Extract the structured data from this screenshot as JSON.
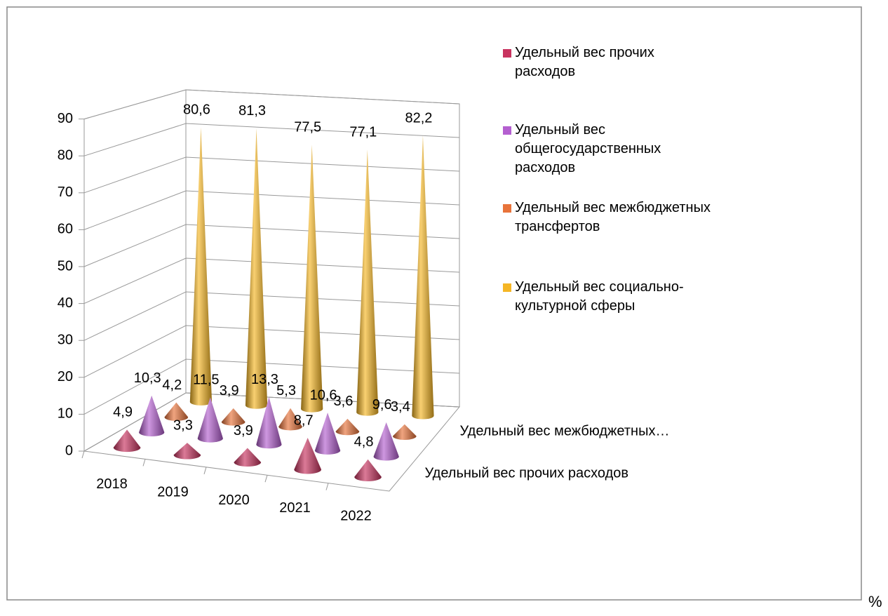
{
  "chart_data": {
    "type": "cone3d",
    "categories": [
      "2018",
      "2019",
      "2020",
      "2021",
      "2022"
    ],
    "depth_labels": [
      "Удельный вес прочих расходов",
      "Удельный вес межбюджетных…"
    ],
    "ylim": [
      0,
      90
    ],
    "yticks": [
      0,
      10,
      20,
      30,
      40,
      50,
      60,
      70,
      80,
      90
    ],
    "grid": true,
    "legend": "right",
    "unit": "%",
    "series": [
      {
        "name": "Удельный вес прочих расходов",
        "color": "#c8335f",
        "values": [
          4.9,
          3.3,
          3.9,
          8.7,
          4.8
        ],
        "value_labels": [
          "4,9",
          "3,3",
          "3,9",
          "8,7",
          "4,8"
        ]
      },
      {
        "name": "Удельный вес общегосударственных расходов",
        "color": "#b45fd0",
        "values": [
          10.3,
          11.5,
          13.3,
          10.6,
          9.6
        ],
        "value_labels": [
          "10,3",
          "11,5",
          "13,3",
          "10,6",
          "9,6"
        ]
      },
      {
        "name": "Удельный вес межбюджетных трансфертов",
        "color": "#e8733a",
        "values": [
          4.2,
          3.9,
          5.3,
          3.6,
          3.4
        ],
        "value_labels": [
          "4,2",
          "3,9",
          "5,3",
          "3,6",
          "3,4"
        ]
      },
      {
        "name": "Удельный вес социально-культурной сферы",
        "color": "#f5b625",
        "values": [
          80.6,
          81.3,
          77.5,
          77.1,
          82.2
        ],
        "value_labels": [
          "80,6",
          "81,3",
          "77,5",
          "77,1",
          "82,2"
        ]
      }
    ]
  }
}
